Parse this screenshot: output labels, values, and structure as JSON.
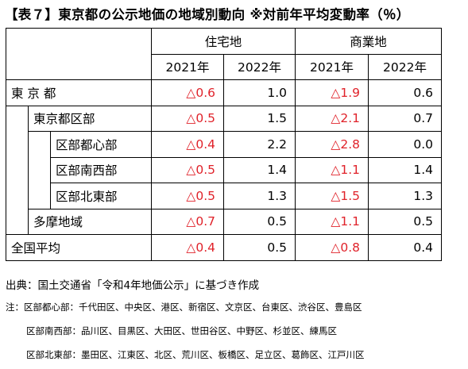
{
  "title": "【表７】東京都の公示地価の地域別動向 ※対前年平均変動率（％）",
  "groups": [
    "住宅地",
    "商業地"
  ],
  "years": [
    "2021年",
    "2022年",
    "2021年",
    "2022年"
  ],
  "rows": [
    {
      "label": "東 京 都",
      "values": [
        "△0.6",
        "1.0",
        "△1.9",
        "0.6"
      ]
    },
    {
      "label": "東京都区部",
      "values": [
        "△0.5",
        "1.5",
        "△2.1",
        "0.7"
      ]
    },
    {
      "label": "区部都心部",
      "values": [
        "△0.4",
        "2.2",
        "△2.8",
        "0.0"
      ]
    },
    {
      "label": "区部南西部",
      "values": [
        "△0.5",
        "1.4",
        "△1.1",
        "1.4"
      ]
    },
    {
      "label": "区部北東部",
      "values": [
        "△0.5",
        "1.3",
        "△1.5",
        "1.3"
      ]
    },
    {
      "label": "多摩地域",
      "values": [
        "△0.7",
        "0.5",
        "△1.1",
        "0.5"
      ]
    },
    {
      "label": "全国平均",
      "values": [
        "△0.4",
        "0.5",
        "△0.8",
        "0.4"
      ]
    }
  ],
  "source": "出典：国土交通省「令和4年地価公示」に基づき作成",
  "notes": [
    "注：区部都心部：千代田区、中央区、港区、新宿区、文京区、台東区、渋谷区、豊島区",
    "区部南西部：品川区、目黒区、大田区、世田谷区、中野区、杉並区、練馬区",
    "区部北東部：墨田区、江東区、北区、荒川区、板橋区、足立区、葛飾区、江戸川区"
  ],
  "negative_color": "#e0222a"
}
